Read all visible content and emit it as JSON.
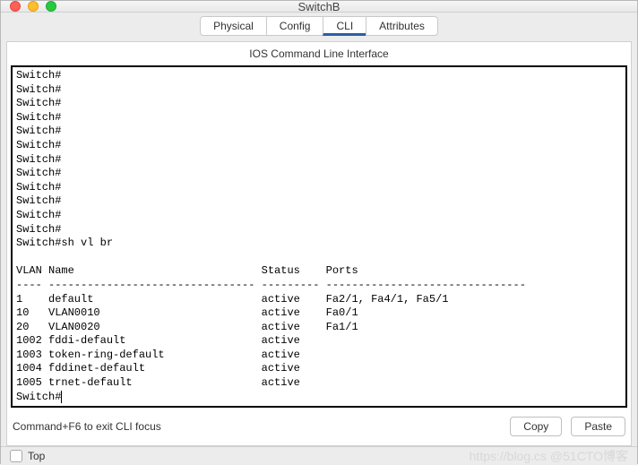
{
  "window": {
    "title": "SwitchB"
  },
  "tabs": [
    {
      "label": "Physical",
      "active": false
    },
    {
      "label": "Config",
      "active": false
    },
    {
      "label": "CLI",
      "active": true
    },
    {
      "label": "Attributes",
      "active": false
    }
  ],
  "cli": {
    "subtitle": "IOS Command Line Interface",
    "output": "Switch#\nSwitch#\nSwitch#\nSwitch#\nSwitch#\nSwitch#\nSwitch#\nSwitch#\nSwitch#\nSwitch#\nSwitch#\nSwitch#\nSwitch#sh vl br\n\nVLAN Name                             Status    Ports\n---- -------------------------------- --------- -------------------------------\n1    default                          active    Fa2/1, Fa4/1, Fa5/1\n10   VLAN0010                         active    Fa0/1\n20   VLAN0020                         active    Fa1/1\n1002 fddi-default                     active    \n1003 token-ring-default               active    \n1004 fddinet-default                  active    \n1005 trnet-default                    active    \nSwitch#",
    "hint": "Command+F6 to exit CLI focus",
    "buttons": {
      "copy": "Copy",
      "paste": "Paste"
    }
  },
  "footer": {
    "top_checkbox_label": "Top",
    "watermark": "https://blog.cs   @51CTO博客"
  }
}
